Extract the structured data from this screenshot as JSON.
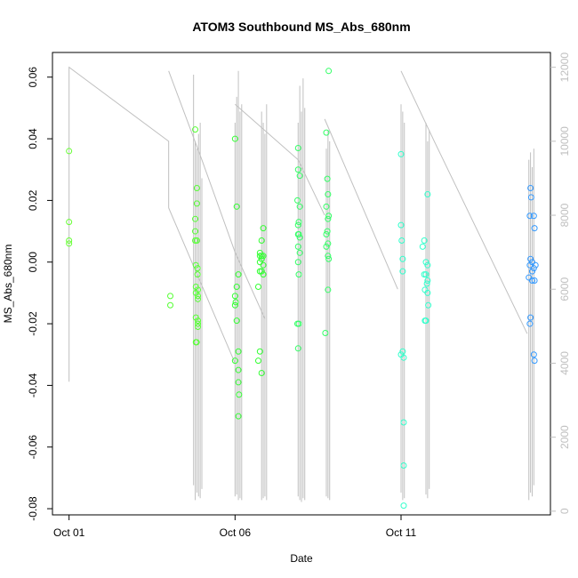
{
  "chart_data": {
    "type": "scatter",
    "title": "ATOM3 Southbound MS_Abs_680nm",
    "xlabel": "Date",
    "ylabel": "MS_Abs_680nm",
    "x_date_range": [
      "Sep 30 12:00",
      "Oct 15 12:00"
    ],
    "x_ticks": [
      {
        "label": "Oct 01",
        "value": 1.0
      },
      {
        "label": "Oct 06",
        "value": 6.0
      },
      {
        "label": "Oct 11",
        "value": 11.0
      }
    ],
    "ylim": [
      -0.082,
      0.068
    ],
    "y_ticks": [
      "-0.08",
      "-0.06",
      "-0.04",
      "-0.02",
      "0.00",
      "0.02",
      "0.04",
      "0.06"
    ],
    "y2_ticks": [
      "0",
      "2000",
      "4000",
      "6000",
      "8000",
      "10000",
      "12000"
    ],
    "y2lim": [
      -100,
      12400
    ],
    "grid": false,
    "series": [
      {
        "color": "#66ff33",
        "points": [
          [
            1.0,
            0.036
          ],
          [
            1.0,
            0.013
          ],
          [
            1.0,
            0.007
          ],
          [
            1.0,
            0.006
          ]
        ]
      },
      {
        "color": "#55ff33",
        "points": [
          [
            4.05,
            -0.011
          ],
          [
            4.05,
            -0.014
          ],
          [
            4.8,
            0.043
          ],
          [
            4.8,
            0.014
          ],
          [
            4.8,
            0.01
          ],
          [
            4.8,
            0.007
          ],
          [
            4.82,
            -0.001
          ],
          [
            4.82,
            -0.008
          ],
          [
            4.82,
            -0.01
          ],
          [
            4.82,
            -0.018
          ],
          [
            4.82,
            -0.026
          ],
          [
            4.85,
            0.024
          ],
          [
            4.85,
            0.019
          ],
          [
            4.85,
            0.007
          ],
          [
            4.87,
            -0.002
          ],
          [
            4.87,
            -0.004
          ],
          [
            4.88,
            -0.009
          ],
          [
            4.88,
            -0.011
          ],
          [
            4.88,
            -0.012
          ],
          [
            4.88,
            -0.019
          ],
          [
            4.88,
            -0.02
          ],
          [
            4.88,
            -0.021
          ],
          [
            4.84,
            -0.026
          ]
        ]
      },
      {
        "color": "#33ff33",
        "points": [
          [
            6.0,
            0.04
          ],
          [
            6.05,
            0.018
          ],
          [
            6.1,
            -0.004
          ],
          [
            6.0,
            -0.011
          ],
          [
            6.05,
            -0.008
          ],
          [
            6.02,
            -0.013
          ],
          [
            6.0,
            -0.014
          ],
          [
            6.05,
            -0.019
          ],
          [
            6.1,
            -0.029
          ],
          [
            6.0,
            -0.032
          ],
          [
            6.1,
            -0.035
          ],
          [
            6.1,
            -0.039
          ],
          [
            6.12,
            -0.043
          ],
          [
            6.1,
            -0.05
          ],
          [
            6.85,
            0.011
          ],
          [
            6.8,
            0.007
          ],
          [
            6.75,
            0.003
          ],
          [
            6.85,
            0.002
          ],
          [
            6.8,
            0.002
          ],
          [
            6.75,
            0.002
          ],
          [
            6.8,
            0.001
          ],
          [
            6.75,
            0.0
          ],
          [
            6.85,
            -0.001
          ],
          [
            6.75,
            -0.003
          ],
          [
            6.8,
            -0.003
          ],
          [
            6.85,
            -0.004
          ],
          [
            6.7,
            -0.008
          ],
          [
            6.75,
            -0.029
          ],
          [
            6.7,
            -0.032
          ],
          [
            6.8,
            -0.036
          ]
        ]
      },
      {
        "color": "#33ff66",
        "points": [
          [
            7.9,
            0.037
          ],
          [
            7.9,
            0.03
          ],
          [
            7.95,
            0.028
          ],
          [
            7.88,
            0.02
          ],
          [
            7.95,
            0.018
          ],
          [
            7.92,
            0.013
          ],
          [
            7.9,
            0.012
          ],
          [
            7.9,
            0.009
          ],
          [
            7.92,
            0.009
          ],
          [
            7.95,
            0.008
          ],
          [
            7.9,
            0.005
          ],
          [
            7.95,
            0.003
          ],
          [
            7.9,
            0.0
          ],
          [
            7.92,
            -0.004
          ],
          [
            7.88,
            -0.02
          ],
          [
            7.92,
            -0.02
          ],
          [
            7.9,
            -0.028
          ],
          [
            8.82,
            0.062
          ],
          [
            8.75,
            0.042
          ],
          [
            8.78,
            0.027
          ],
          [
            8.8,
            0.022
          ],
          [
            8.75,
            0.018
          ],
          [
            8.82,
            0.015
          ],
          [
            8.8,
            0.014
          ],
          [
            8.78,
            0.01
          ],
          [
            8.75,
            0.009
          ],
          [
            8.8,
            0.006
          ],
          [
            8.75,
            0.005
          ],
          [
            8.8,
            0.002
          ],
          [
            8.82,
            0.001
          ],
          [
            8.8,
            -0.009
          ],
          [
            8.72,
            -0.023
          ]
        ]
      },
      {
        "color": "#33ffcc",
        "points": [
          [
            11.0,
            0.035
          ],
          [
            11.0,
            0.012
          ],
          [
            11.02,
            0.007
          ],
          [
            11.05,
            0.001
          ],
          [
            11.05,
            -0.003
          ],
          [
            11.05,
            -0.029
          ],
          [
            11.0,
            -0.03
          ],
          [
            11.08,
            -0.031
          ],
          [
            11.08,
            -0.052
          ],
          [
            11.08,
            -0.066
          ],
          [
            11.08,
            -0.079
          ],
          [
            11.8,
            0.022
          ],
          [
            11.7,
            0.007
          ],
          [
            11.65,
            0.005
          ],
          [
            11.75,
            0.0
          ],
          [
            11.8,
            -0.001
          ],
          [
            11.7,
            -0.004
          ],
          [
            11.75,
            -0.004
          ],
          [
            11.8,
            -0.006
          ],
          [
            11.78,
            -0.007
          ],
          [
            11.72,
            -0.009
          ],
          [
            11.8,
            -0.01
          ],
          [
            11.82,
            -0.014
          ],
          [
            11.72,
            -0.019
          ],
          [
            11.75,
            -0.019
          ]
        ]
      },
      {
        "color": "#3399ff",
        "points": [
          [
            14.9,
            0.024
          ],
          [
            14.92,
            0.021
          ],
          [
            14.88,
            0.015
          ],
          [
            15.0,
            0.015
          ],
          [
            15.02,
            0.011
          ],
          [
            14.9,
            0.001
          ],
          [
            14.95,
            0.0
          ],
          [
            14.88,
            -0.001
          ],
          [
            15.05,
            -0.001
          ],
          [
            15.0,
            -0.002
          ],
          [
            14.95,
            -0.003
          ],
          [
            14.85,
            -0.005
          ],
          [
            14.95,
            -0.006
          ],
          [
            15.02,
            -0.006
          ],
          [
            14.9,
            -0.018
          ],
          [
            14.88,
            -0.02
          ],
          [
            15.0,
            -0.03
          ],
          [
            15.02,
            -0.032
          ]
        ]
      }
    ],
    "secondary_line": {
      "color": "#c0c0c0",
      "axis": "right",
      "segments": [
        [
          [
            1.0,
            3500
          ],
          [
            1.0,
            12000
          ],
          [
            4.0,
            10000
          ],
          [
            4.0,
            8200
          ],
          [
            6.0,
            4000
          ]
        ],
        [
          [
            4.0,
            11900
          ],
          [
            5.0,
            9500
          ],
          [
            6.0,
            7000
          ],
          [
            6.9,
            5200
          ]
        ],
        [
          [
            6.0,
            11000
          ],
          [
            7.9,
            9500
          ],
          [
            8.7,
            8000
          ]
        ],
        [
          [
            8.7,
            10600
          ],
          [
            10.9,
            6000
          ]
        ],
        [
          [
            11.0,
            11900
          ],
          [
            12.0,
            10000
          ],
          [
            14.8,
            4800
          ]
        ]
      ],
      "spikes": [
        [
          4.75,
          11800,
          700
        ],
        [
          4.8,
          10000,
          300
        ],
        [
          4.85,
          9800,
          500
        ],
        [
          4.9,
          10200,
          400
        ],
        [
          4.95,
          10500,
          350
        ],
        [
          5.0,
          9000,
          600
        ],
        [
          6.0,
          10500,
          400
        ],
        [
          6.05,
          11200,
          450
        ],
        [
          6.1,
          11900,
          300
        ],
        [
          6.15,
          10800,
          350
        ],
        [
          6.2,
          11000,
          300
        ],
        [
          6.8,
          10800,
          300
        ],
        [
          6.85,
          10500,
          350
        ],
        [
          6.9,
          10200,
          400
        ],
        [
          6.95,
          11000,
          300
        ],
        [
          7.9,
          10500,
          400
        ],
        [
          7.95,
          11500,
          300
        ],
        [
          8.0,
          10800,
          250
        ],
        [
          8.05,
          11700,
          350
        ],
        [
          8.1,
          10900,
          300
        ],
        [
          8.75,
          9800,
          400
        ],
        [
          8.8,
          10300,
          350
        ],
        [
          8.85,
          10000,
          300
        ],
        [
          11.0,
          11000,
          500
        ],
        [
          11.05,
          10800,
          300
        ],
        [
          11.1,
          10500,
          350
        ],
        [
          11.75,
          10500,
          450
        ],
        [
          11.8,
          10000,
          350
        ],
        [
          11.85,
          10300,
          600
        ],
        [
          14.85,
          9500,
          300
        ],
        [
          14.9,
          9700,
          500
        ],
        [
          14.95,
          9300,
          400
        ],
        [
          15.0,
          9800,
          700
        ]
      ]
    }
  }
}
